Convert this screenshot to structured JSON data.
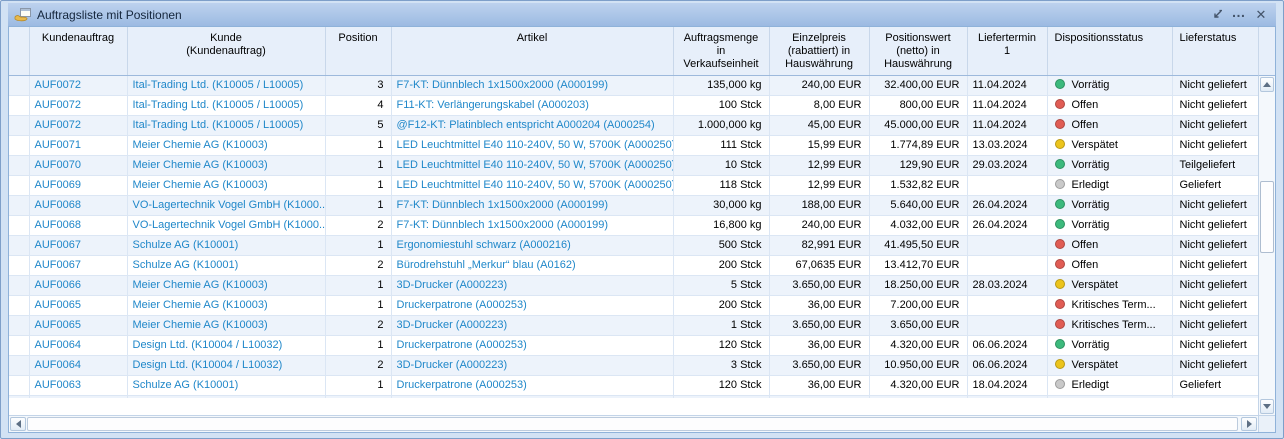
{
  "window": {
    "title": "Auftragsliste mit Positionen",
    "more_glyph": "…",
    "close_glyph": "✕"
  },
  "colors": {
    "link": "#1f87c9",
    "status": {
      "green": "#3cb97c",
      "red": "#e05c54",
      "yellow": "#ecc41c",
      "gray": "#c9c9c9"
    }
  },
  "table": {
    "columns": [
      {
        "key": "sel",
        "label": "",
        "type": "blank"
      },
      {
        "key": "auftrag",
        "label": "Kundenauftrag",
        "type": "link"
      },
      {
        "key": "kunde",
        "label": "Kunde\n(Kundenauftrag)",
        "type": "link"
      },
      {
        "key": "position",
        "label": "Position",
        "type": "num"
      },
      {
        "key": "artikel",
        "label": "Artikel",
        "type": "link"
      },
      {
        "key": "menge",
        "label": "Auftragsmenge\nin\nVerkaufseinheit",
        "type": "num"
      },
      {
        "key": "preis",
        "label": "Einzelpreis\n(rabattiert) in\nHauswährung",
        "type": "num"
      },
      {
        "key": "wert",
        "label": "Positionswert\n(netto) in\nHauswährung",
        "type": "num"
      },
      {
        "key": "termin",
        "label": "Liefertermin\n1",
        "type": "date"
      },
      {
        "key": "dispo",
        "label": "Dispositionsstatus",
        "type": "status"
      },
      {
        "key": "lieferstatus",
        "label": "Lieferstatus",
        "type": "text"
      }
    ],
    "rows": [
      {
        "auftrag": "AUF0072",
        "kunde": "Ital-Trading Ltd. (K10005 / L10005)",
        "position": "3",
        "artikel": "F7-KT: Dünnblech 1x1500x2000 (A000199)",
        "menge": "135,000 kg",
        "preis": "240,00 EUR",
        "wert": "32.400,00 EUR",
        "termin": "11.04.2024",
        "dispo": "Vorrätig",
        "dispo_color": "green",
        "lieferstatus": "Nicht geliefert"
      },
      {
        "auftrag": "AUF0072",
        "kunde": "Ital-Trading Ltd. (K10005 / L10005)",
        "position": "4",
        "artikel": "F11-KT: Verlängerungskabel (A000203)",
        "menge": "100 Stck",
        "preis": "8,00 EUR",
        "wert": "800,00 EUR",
        "termin": "11.04.2024",
        "dispo": "Offen",
        "dispo_color": "red",
        "lieferstatus": "Nicht geliefert"
      },
      {
        "auftrag": "AUF0072",
        "kunde": "Ital-Trading Ltd. (K10005 / L10005)",
        "position": "5",
        "artikel": "@F12-KT: Platinblech entspricht A000204 (A000254)",
        "menge": "1.000,000 kg",
        "preis": "45,00 EUR",
        "wert": "45.000,00 EUR",
        "termin": "11.04.2024",
        "dispo": "Offen",
        "dispo_color": "red",
        "lieferstatus": "Nicht geliefert"
      },
      {
        "auftrag": "AUF0071",
        "kunde": "Meier Chemie AG (K10003)",
        "position": "1",
        "artikel": "LED Leuchtmittel E40 110-240V, 50 W, 5700K (A000250)",
        "menge": "111 Stck",
        "preis": "15,99 EUR",
        "wert": "1.774,89 EUR",
        "termin": "13.03.2024",
        "dispo": "Verspätet",
        "dispo_color": "yellow",
        "lieferstatus": "Nicht geliefert"
      },
      {
        "auftrag": "AUF0070",
        "kunde": "Meier Chemie AG (K10003)",
        "position": "1",
        "artikel": "LED Leuchtmittel E40 110-240V, 50 W, 5700K (A000250)",
        "menge": "10 Stck",
        "preis": "12,99 EUR",
        "wert": "129,90 EUR",
        "termin": "29.03.2024",
        "dispo": "Vorrätig",
        "dispo_color": "green",
        "lieferstatus": "Teilgeliefert"
      },
      {
        "auftrag": "AUF0069",
        "kunde": "Meier Chemie AG (K10003)",
        "position": "1",
        "artikel": "LED Leuchtmittel E40 110-240V, 50 W, 5700K (A000250)",
        "menge": "118 Stck",
        "preis": "12,99 EUR",
        "wert": "1.532,82 EUR",
        "termin": "",
        "dispo": "Erledigt",
        "dispo_color": "gray",
        "lieferstatus": "Geliefert"
      },
      {
        "auftrag": "AUF0068",
        "kunde": "VO-Lagertechnik Vogel GmbH (K1000...",
        "position": "1",
        "artikel": "F7-KT: Dünnblech 1x1500x2000 (A000199)",
        "menge": "30,000 kg",
        "preis": "188,00 EUR",
        "wert": "5.640,00 EUR",
        "termin": "26.04.2024",
        "dispo": "Vorrätig",
        "dispo_color": "green",
        "lieferstatus": "Nicht geliefert"
      },
      {
        "auftrag": "AUF0068",
        "kunde": "VO-Lagertechnik Vogel GmbH (K1000...",
        "position": "2",
        "artikel": "F7-KT: Dünnblech 1x1500x2000 (A000199)",
        "menge": "16,800 kg",
        "preis": "240,00 EUR",
        "wert": "4.032,00 EUR",
        "termin": "26.04.2024",
        "dispo": "Vorrätig",
        "dispo_color": "green",
        "lieferstatus": "Nicht geliefert"
      },
      {
        "auftrag": "AUF0067",
        "kunde": "Schulze AG (K10001)",
        "position": "1",
        "artikel": "Ergonomiestuhl schwarz (A000216)",
        "menge": "500 Stck",
        "preis": "82,991 EUR",
        "wert": "41.495,50 EUR",
        "termin": "",
        "dispo": "Offen",
        "dispo_color": "red",
        "lieferstatus": "Nicht geliefert"
      },
      {
        "auftrag": "AUF0067",
        "kunde": "Schulze AG (K10001)",
        "position": "2",
        "artikel": "Bürodrehstuhl „Merkur“ blau (A0162)",
        "menge": "200 Stck",
        "preis": "67,0635 EUR",
        "wert": "13.412,70 EUR",
        "termin": "",
        "dispo": "Offen",
        "dispo_color": "red",
        "lieferstatus": "Nicht geliefert"
      },
      {
        "auftrag": "AUF0066",
        "kunde": "Meier Chemie AG (K10003)",
        "position": "1",
        "artikel": "3D-Drucker (A000223)",
        "menge": "5 Stck",
        "preis": "3.650,00 EUR",
        "wert": "18.250,00 EUR",
        "termin": "28.03.2024",
        "dispo": "Verspätet",
        "dispo_color": "yellow",
        "lieferstatus": "Nicht geliefert"
      },
      {
        "auftrag": "AUF0065",
        "kunde": "Meier Chemie AG (K10003)",
        "position": "1",
        "artikel": "Druckerpatrone (A000253)",
        "menge": "200 Stck",
        "preis": "36,00 EUR",
        "wert": "7.200,00 EUR",
        "termin": "",
        "dispo": "Kritisches Term...",
        "dispo_color": "red",
        "lieferstatus": "Nicht geliefert"
      },
      {
        "auftrag": "AUF0065",
        "kunde": "Meier Chemie AG (K10003)",
        "position": "2",
        "artikel": "3D-Drucker (A000223)",
        "menge": "1 Stck",
        "preis": "3.650,00 EUR",
        "wert": "3.650,00 EUR",
        "termin": "",
        "dispo": "Kritisches Term...",
        "dispo_color": "red",
        "lieferstatus": "Nicht geliefert"
      },
      {
        "auftrag": "AUF0064",
        "kunde": "Design Ltd. (K10004 / L10032)",
        "position": "1",
        "artikel": "Druckerpatrone (A000253)",
        "menge": "120 Stck",
        "preis": "36,00 EUR",
        "wert": "4.320,00 EUR",
        "termin": "06.06.2024",
        "dispo": "Vorrätig",
        "dispo_color": "green",
        "lieferstatus": "Nicht geliefert"
      },
      {
        "auftrag": "AUF0064",
        "kunde": "Design Ltd. (K10004 / L10032)",
        "position": "2",
        "artikel": "3D-Drucker (A000223)",
        "menge": "3 Stck",
        "preis": "3.650,00 EUR",
        "wert": "10.950,00 EUR",
        "termin": "06.06.2024",
        "dispo": "Verspätet",
        "dispo_color": "yellow",
        "lieferstatus": "Nicht geliefert"
      },
      {
        "auftrag": "AUF0063",
        "kunde": "Schulze AG (K10001)",
        "position": "1",
        "artikel": "Druckerpatrone (A000253)",
        "menge": "120 Stck",
        "preis": "36,00 EUR",
        "wert": "4.320,00 EUR",
        "termin": "18.04.2024",
        "dispo": "Erledigt",
        "dispo_color": "gray",
        "lieferstatus": "Geliefert"
      }
    ]
  }
}
